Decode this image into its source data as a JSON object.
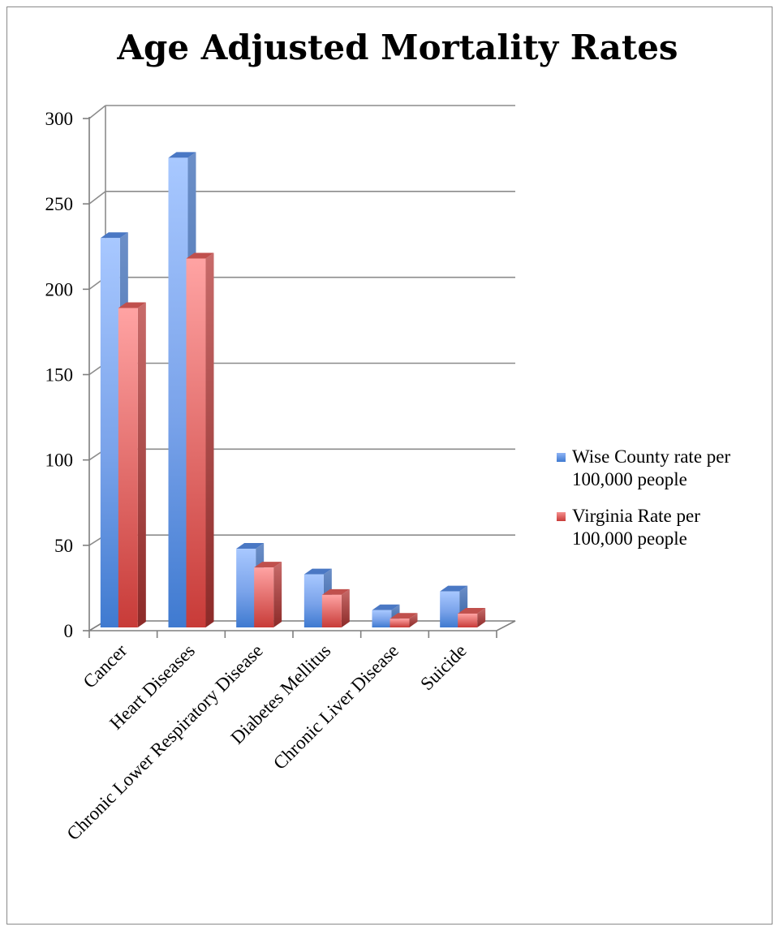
{
  "chart_data": {
    "type": "bar",
    "title": "Age Adjusted Mortality Rates",
    "categories": [
      "Cancer",
      "Heart Diseases",
      "Chronic Lower Respiratory Disease",
      "Diabetes Mellitus",
      "Chronic Liver Disease",
      "Suicide"
    ],
    "series": [
      {
        "name": "Wise County rate per 100,000 people",
        "values": [
          230,
          277,
          48,
          33,
          12,
          23
        ],
        "color": "#4f81bd"
      },
      {
        "name": "Virginia Rate per 100,000 people",
        "values": [
          189,
          218,
          37,
          21,
          7,
          10
        ],
        "color": "#c0504d"
      }
    ],
    "yticks": [
      0,
      50,
      100,
      150,
      200,
      250,
      300
    ],
    "ylim": [
      0,
      300
    ],
    "grid": true,
    "legend_position": "right",
    "legend_lines": [
      [
        "Wise County rate per",
        "100,000 people"
      ],
      [
        "Virginia Rate per",
        "100,000 people"
      ]
    ]
  }
}
